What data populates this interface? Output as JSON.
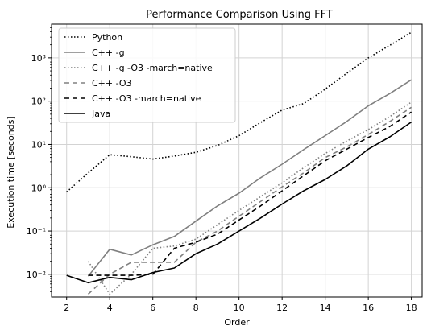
{
  "chart_data": {
    "type": "line",
    "title": "Performance Comparison Using FFT",
    "xlabel": "Order",
    "ylabel": "Execution time [seconds]",
    "xlim": [
      1.3,
      18.5
    ],
    "ylim": [
      0.003,
      6000
    ],
    "y_scale": "log",
    "grid": true,
    "legend_position": "top-left",
    "x_ticks": [
      2,
      4,
      6,
      8,
      10,
      12,
      14,
      16,
      18
    ],
    "x_tick_labels": [
      "2",
      "4",
      "6",
      "8",
      "10",
      "12",
      "14",
      "16",
      "18"
    ],
    "y_ticks": [
      0.01,
      0.1,
      1,
      10,
      100,
      1000
    ],
    "y_tick_labels": [
      "10⁻²",
      "10⁻¹",
      "10⁰",
      "10¹",
      "10²",
      "10³"
    ],
    "series": [
      {
        "name": "Python",
        "color": "#000000",
        "dash": "dotted",
        "x": [
          2,
          3,
          4,
          5,
          6,
          7,
          8,
          9,
          10,
          11,
          12,
          13,
          14,
          15,
          16,
          17,
          18
        ],
        "values": [
          0.8,
          2.2,
          5.8,
          5.2,
          4.6,
          5.4,
          6.6,
          9.5,
          16,
          32,
          62,
          88,
          190,
          440,
          1000,
          1950,
          3900
        ]
      },
      {
        "name": "C++ -g",
        "color": "#808080",
        "dash": "solid",
        "x": [
          3,
          4,
          5,
          6,
          7,
          8,
          9,
          10,
          11,
          12,
          13,
          14,
          15,
          16,
          17,
          18
        ],
        "values": [
          0.009,
          0.038,
          0.028,
          0.048,
          0.075,
          0.17,
          0.38,
          0.75,
          1.7,
          3.5,
          7.6,
          16,
          34,
          78,
          150,
          310
        ]
      },
      {
        "name": "C++ -g -O3 -march=native",
        "color": "#808080",
        "dash": "dotted",
        "x": [
          3,
          4,
          5,
          6,
          7,
          8,
          9,
          10,
          11,
          12,
          13,
          14,
          15,
          16,
          17,
          18
        ],
        "values": [
          0.02,
          0.0035,
          0.01,
          0.04,
          0.045,
          0.065,
          0.14,
          0.3,
          0.62,
          1.3,
          2.9,
          6.2,
          12,
          22,
          44,
          95
        ]
      },
      {
        "name": "C++ -O3",
        "color": "#808080",
        "dash": "dashed",
        "x": [
          3,
          4,
          5,
          6,
          7,
          8,
          9,
          10,
          11,
          12,
          13,
          14,
          15,
          16,
          17,
          18
        ],
        "values": [
          0.0035,
          0.01,
          0.019,
          0.019,
          0.019,
          0.055,
          0.1,
          0.22,
          0.48,
          1.05,
          2.2,
          5.0,
          8.8,
          17,
          34,
          72
        ]
      },
      {
        "name": "C++ -O3 -march=native",
        "color": "#000000",
        "dash": "dashed",
        "x": [
          3,
          4,
          5,
          6,
          7,
          8,
          9,
          10,
          11,
          12,
          13,
          14,
          15,
          16,
          17,
          18
        ],
        "values": [
          0.0095,
          0.0095,
          0.0095,
          0.01,
          0.04,
          0.055,
          0.085,
          0.18,
          0.38,
          0.85,
          1.9,
          4.2,
          7.8,
          14.5,
          26,
          56
        ]
      },
      {
        "name": "Java",
        "color": "#000000",
        "dash": "solid",
        "x": [
          2,
          3,
          4,
          5,
          6,
          7,
          8,
          9,
          10,
          11,
          12,
          13,
          14,
          15,
          16,
          17,
          18
        ],
        "values": [
          0.0095,
          0.0064,
          0.0085,
          0.0075,
          0.011,
          0.014,
          0.03,
          0.05,
          0.1,
          0.2,
          0.42,
          0.85,
          1.55,
          3.2,
          7.8,
          15,
          33
        ]
      }
    ]
  }
}
